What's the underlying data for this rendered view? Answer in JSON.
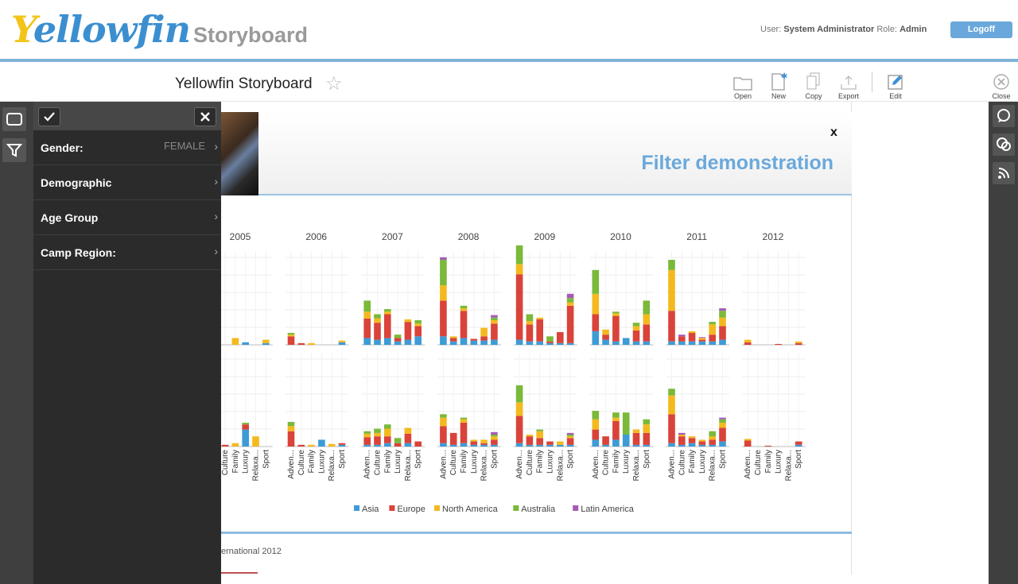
{
  "header": {
    "logo_prefix": "Y",
    "logo_rest": "ellowfin",
    "app_title": "Storyboard",
    "user_label": "User:",
    "user_name": "System Administrator",
    "role_label": "Role:",
    "role_name": "Admin",
    "logoff_label": "Logoff"
  },
  "toolbar": {
    "title": "Yellowfin Storyboard",
    "open": "Open",
    "new": "New",
    "copy": "Copy",
    "export": "Export",
    "edit": "Edit",
    "close": "Close"
  },
  "filters": {
    "items": [
      {
        "label": "Gender:",
        "value": "FEMALE"
      },
      {
        "label": "Demographic",
        "value": ""
      },
      {
        "label": "Age Group",
        "value": ""
      },
      {
        "label": "Camp Region:",
        "value": ""
      }
    ]
  },
  "story": {
    "close_label": "x",
    "title": "Filter demonstration",
    "footer_text": "ernational 2012"
  },
  "chart_data": {
    "type": "bar",
    "stacked": true,
    "years": [
      "2005",
      "2006",
      "2007",
      "2008",
      "2009",
      "2010",
      "2011",
      "2012"
    ],
    "categories": [
      "Adven...",
      "Culture",
      "Family",
      "Luxury",
      "Relaxa...",
      "Sport"
    ],
    "series_names": [
      "Asia",
      "Europe",
      "North America",
      "Australia",
      "Latin America"
    ],
    "colors": [
      "#3d9bd6",
      "#d9433a",
      "#f4b91f",
      "#7ab93a",
      "#a45cb5"
    ],
    "panels": [
      {
        "2005": [
          [
            0,
            0,
            0,
            0,
            0
          ],
          [
            0,
            0,
            0,
            0,
            0
          ],
          [
            0,
            0,
            8,
            0,
            0
          ],
          [
            3,
            0,
            0,
            0,
            0
          ],
          [
            0,
            0,
            0,
            0,
            0
          ],
          [
            2,
            0,
            4,
            0,
            0
          ]
        ],
        "2006": [
          [
            0,
            10,
            2,
            2,
            0
          ],
          [
            0,
            2,
            0,
            0,
            0
          ],
          [
            0,
            0,
            2,
            0,
            0
          ],
          [
            0,
            0,
            0,
            0,
            0
          ],
          [
            0,
            0,
            0,
            0,
            0
          ],
          [
            3,
            0,
            2,
            0,
            0
          ]
        ],
        "2007": [
          [
            8,
            23,
            8,
            13,
            0
          ],
          [
            6,
            20,
            5,
            5,
            0
          ],
          [
            8,
            28,
            3,
            3,
            0
          ],
          [
            4,
            4,
            0,
            4,
            0
          ],
          [
            6,
            21,
            3,
            0,
            0
          ],
          [
            10,
            12,
            3,
            4,
            0
          ]
        ],
        "2008": [
          [
            10,
            42,
            18,
            30,
            3
          ],
          [
            4,
            4,
            2,
            0,
            0
          ],
          [
            8,
            32,
            3,
            3,
            0
          ],
          [
            5,
            2,
            0,
            0,
            0
          ],
          [
            5,
            5,
            10,
            0,
            0
          ],
          [
            6,
            19,
            4,
            3,
            3
          ]
        ],
        "2009": [
          [
            6,
            77,
            12,
            22,
            0
          ],
          [
            4,
            20,
            4,
            8,
            0
          ],
          [
            4,
            26,
            2,
            0,
            0
          ],
          [
            2,
            2,
            0,
            6,
            0
          ],
          [
            2,
            13,
            0,
            0,
            0
          ],
          [
            2,
            44,
            4,
            5,
            5
          ]
        ],
        "2010": [
          [
            16,
            20,
            24,
            28,
            0
          ],
          [
            6,
            6,
            6,
            0,
            0
          ],
          [
            4,
            30,
            3,
            2,
            0
          ],
          [
            8,
            0,
            0,
            0,
            0
          ],
          [
            4,
            13,
            5,
            4,
            0
          ],
          [
            4,
            20,
            12,
            16,
            0
          ]
        ],
        "2011": [
          [
            4,
            36,
            48,
            12,
            0
          ],
          [
            4,
            6,
            0,
            0,
            2
          ],
          [
            4,
            10,
            2,
            0,
            0
          ],
          [
            4,
            2,
            2,
            0,
            1
          ],
          [
            4,
            8,
            12,
            3,
            0
          ],
          [
            6,
            16,
            10,
            8,
            3
          ]
        ],
        "2012": [
          [
            0,
            3,
            3,
            0,
            0
          ],
          [
            0,
            0,
            0,
            0,
            0
          ],
          [
            0,
            0,
            0,
            0,
            0
          ],
          [
            0,
            1,
            0,
            0,
            0
          ],
          [
            0,
            0,
            0,
            0,
            0
          ],
          [
            0,
            2,
            2,
            0,
            0
          ]
        ]
      },
      {
        "2005": [
          [
            0,
            0,
            0,
            0,
            0
          ],
          [
            0,
            2,
            0,
            0,
            0
          ],
          [
            0,
            0,
            4,
            0,
            0
          ],
          [
            20,
            6,
            0,
            2,
            0
          ],
          [
            0,
            0,
            12,
            0,
            0
          ],
          [
            0,
            0,
            0,
            0,
            0
          ]
        ],
        "2006": [
          [
            0,
            18,
            6,
            5,
            0
          ],
          [
            0,
            2,
            0,
            0,
            0
          ],
          [
            0,
            0,
            2,
            0,
            0
          ],
          [
            8,
            0,
            0,
            0,
            0
          ],
          [
            0,
            0,
            3,
            0,
            0
          ],
          [
            2,
            2,
            0,
            0,
            0
          ]
        ],
        "2007": [
          [
            2,
            9,
            4,
            3,
            0
          ],
          [
            2,
            10,
            4,
            5,
            0
          ],
          [
            4,
            8,
            9,
            5,
            0
          ],
          [
            0,
            4,
            0,
            6,
            0
          ],
          [
            4,
            11,
            7,
            0,
            0
          ],
          [
            0,
            6,
            0,
            0,
            0
          ]
        ],
        "2008": [
          [
            4,
            20,
            10,
            4,
            0
          ],
          [
            2,
            14,
            0,
            0,
            0
          ],
          [
            4,
            24,
            4,
            2,
            0
          ],
          [
            2,
            4,
            2,
            0,
            0
          ],
          [
            2,
            2,
            4,
            0,
            0
          ],
          [
            2,
            6,
            4,
            2,
            3
          ]
        ],
        "2009": [
          [
            4,
            32,
            16,
            20,
            0
          ],
          [
            2,
            10,
            2,
            0,
            0
          ],
          [
            2,
            8,
            8,
            2,
            0
          ],
          [
            2,
            4,
            0,
            0,
            0
          ],
          [
            2,
            0,
            4,
            0,
            0
          ],
          [
            2,
            8,
            2,
            2,
            2
          ]
        ],
        "2010": [
          [
            8,
            12,
            12,
            10,
            0
          ],
          [
            2,
            10,
            0,
            0,
            0
          ],
          [
            8,
            22,
            4,
            6,
            0
          ],
          [
            14,
            0,
            0,
            26,
            0
          ],
          [
            2,
            14,
            4,
            0,
            0
          ],
          [
            2,
            14,
            10,
            6,
            0
          ]
        ],
        "2011": [
          [
            4,
            34,
            22,
            8,
            0
          ],
          [
            2,
            10,
            2,
            0,
            2
          ],
          [
            4,
            6,
            2,
            0,
            0
          ],
          [
            2,
            4,
            2,
            0,
            0
          ],
          [
            2,
            6,
            4,
            6,
            0
          ],
          [
            6,
            16,
            6,
            4,
            2
          ]
        ],
        "2012": [
          [
            0,
            7,
            2,
            0,
            0
          ],
          [
            0,
            0,
            0,
            0,
            0
          ],
          [
            0,
            1,
            0,
            0,
            0
          ],
          [
            0,
            0,
            0,
            0,
            0
          ],
          [
            0,
            0,
            0,
            0,
            0
          ],
          [
            2,
            4,
            0,
            0,
            0
          ]
        ]
      }
    ]
  }
}
